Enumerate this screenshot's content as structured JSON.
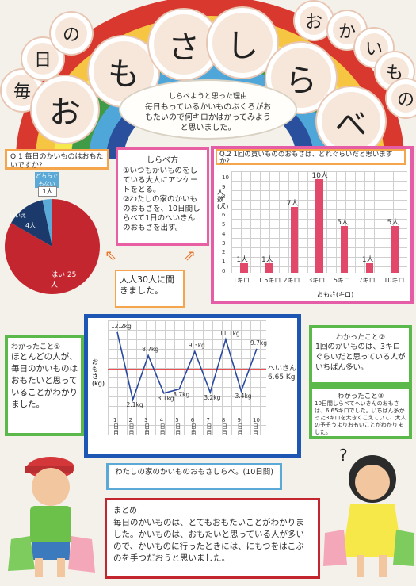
{
  "title": {
    "left_chars": [
      "毎",
      "日",
      "の"
    ],
    "main_chars": [
      "お",
      "も",
      "さ",
      "し",
      "ら",
      "べ"
    ],
    "right_chars": [
      "お",
      "か",
      "い",
      "も",
      "の"
    ]
  },
  "motive": {
    "heading": "しらべようと思った理由",
    "text": "毎日もっているかいものぶくろがおもたいので何キロかはかってみようと思いました。"
  },
  "q1": {
    "question": "Q.1 毎日のかいものはおもたいですか?",
    "chart_data": {
      "type": "pie",
      "categories": [
        "はい",
        "いいえ",
        "どちらでもない"
      ],
      "values": [
        25,
        4,
        1
      ],
      "labels": [
        "はい 25人",
        "4人",
        "1人"
      ],
      "legend_small": [
        "どちらでもない",
        "いいえ"
      ]
    }
  },
  "method": {
    "heading": "しらべ方",
    "items": [
      "①いつもかいものをしている大人にアンケートをとる。",
      "②わたしの家のかいものおもさを、10日間しらべて1日のへいきんのおもさを出す。"
    ],
    "note": "大人30人に聞きました。"
  },
  "q2": {
    "question": "Q.2 1回の買いもののおもさは、どれぐらいだと思いますか?",
    "chart_data": {
      "type": "bar",
      "categories": [
        "1キロ",
        "1.5キロ",
        "2キロ",
        "3キロ",
        "5キロ",
        "7キロ",
        "10キロ"
      ],
      "values": [
        1,
        1,
        7,
        10,
        5,
        1,
        5
      ],
      "value_labels": [
        "1人",
        "1人",
        "7人",
        "10人",
        "5人",
        "1人",
        "5人"
      ],
      "ylabel": "人数(人)",
      "xlabel": "おもさ(キロ)",
      "ylim": [
        0,
        10
      ],
      "yticks": [
        "0",
        "1",
        "2",
        "3",
        "4",
        "5",
        "6",
        "7",
        "8",
        "9",
        "10"
      ]
    }
  },
  "found1": {
    "heading": "わかったこと①",
    "text": "ほとんどの人が、毎日のかいものはおもたいと思っていることがわかりました。"
  },
  "line": {
    "chart_data": {
      "type": "line",
      "categories": [
        "1日目",
        "2日目",
        "3日目",
        "4日目",
        "5日目",
        "6日目",
        "7日目",
        "8日目",
        "9日目",
        "10日目"
      ],
      "values": [
        12.2,
        2.1,
        8.7,
        3.1,
        3.7,
        9.3,
        3.2,
        11.1,
        3.4,
        9.7
      ],
      "value_labels": [
        "12.2kg",
        "2.1kg",
        "8.7kg",
        "3.1kg",
        "3.7kg",
        "9.3kg",
        "3.2kg",
        "11.1kg",
        "3.4kg",
        "9.7kg"
      ],
      "average": 6.65,
      "average_label": "へいきん 6.65 Kg",
      "ylabel": "おもさ(kg)",
      "ylim": [
        0,
        13
      ],
      "title": "わたしの家のかいものおもさしらべ。(10日間)"
    }
  },
  "found2": {
    "heading": "わかったこと②",
    "text": "1回のかいものは、3キロぐらいだと思っている人がいちばん多い。"
  },
  "found3": {
    "heading": "わかったこと③",
    "text": "10日間しらべてへいきんのおもさは、6.65キロでした。いちばん多かった3キロを大きくこえていて、大人の予そうよりおもいことがわかりました。"
  },
  "summary": {
    "heading": "まとめ",
    "text": "毎日のかいものは、とてもおもたいことがわかりました。かいものは、おもたいと思っている人が多いので、かいものに行ったときには、にもつをはこぶのを手つだおうと思いました。"
  },
  "question_mark": "?",
  "colors": {
    "rainbow": [
      "#d9382f",
      "#f6c542",
      "#f5e94e",
      "#3f9b45",
      "#4fa6d9",
      "#2a4f9c"
    ],
    "pie": [
      "#c4262f",
      "#1b3a6b",
      "#5aa9d6"
    ],
    "bars": "#e2486a",
    "q_border": "#f5a54b",
    "method_border": "#e85fa4",
    "q2_border": "#e65da7",
    "line_border": "#1e56b3",
    "found_border": "#5bb84a"
  }
}
